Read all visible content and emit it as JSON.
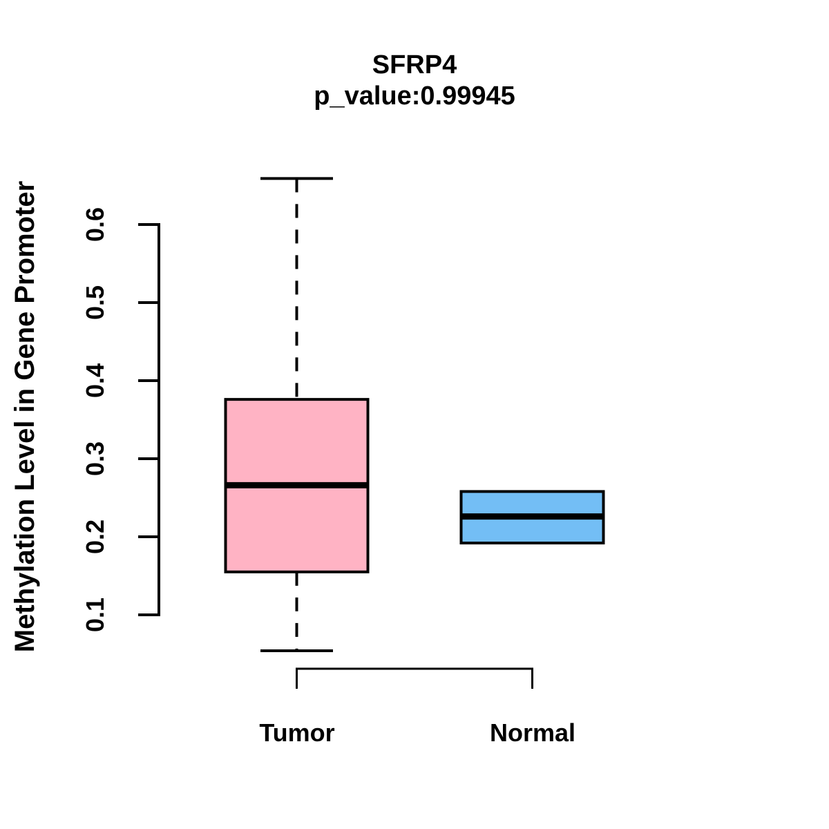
{
  "page": {
    "background": "#ffffff"
  },
  "chart_data": {
    "type": "boxplot",
    "title": "SFRP4",
    "subtitle": "p_value:0.99945",
    "ylabel": "Methylation Level in Gene Promoter",
    "xlabel": "",
    "categories": [
      "Tumor",
      "Normal"
    ],
    "yticks": [
      0.1,
      0.2,
      0.3,
      0.4,
      0.5,
      0.6
    ],
    "ytick_decimals": 1,
    "ylim": [
      0.05,
      0.67
    ],
    "grid": false,
    "legend": "none",
    "stroke_color": "#000000",
    "series": [
      {
        "name": "Tumor",
        "box_color": "#ffb3c4",
        "stats": {
          "min": 0.054,
          "q1": 0.155,
          "median": 0.266,
          "q3": 0.376,
          "max": 0.659
        },
        "whiskers": true,
        "outliers": []
      },
      {
        "name": "Normal",
        "box_color": "#73bef5",
        "stats": {
          "min": 0.192,
          "q1": 0.192,
          "median": 0.226,
          "q3": 0.258,
          "max": 0.258
        },
        "whiskers": false,
        "outliers": []
      }
    ]
  }
}
